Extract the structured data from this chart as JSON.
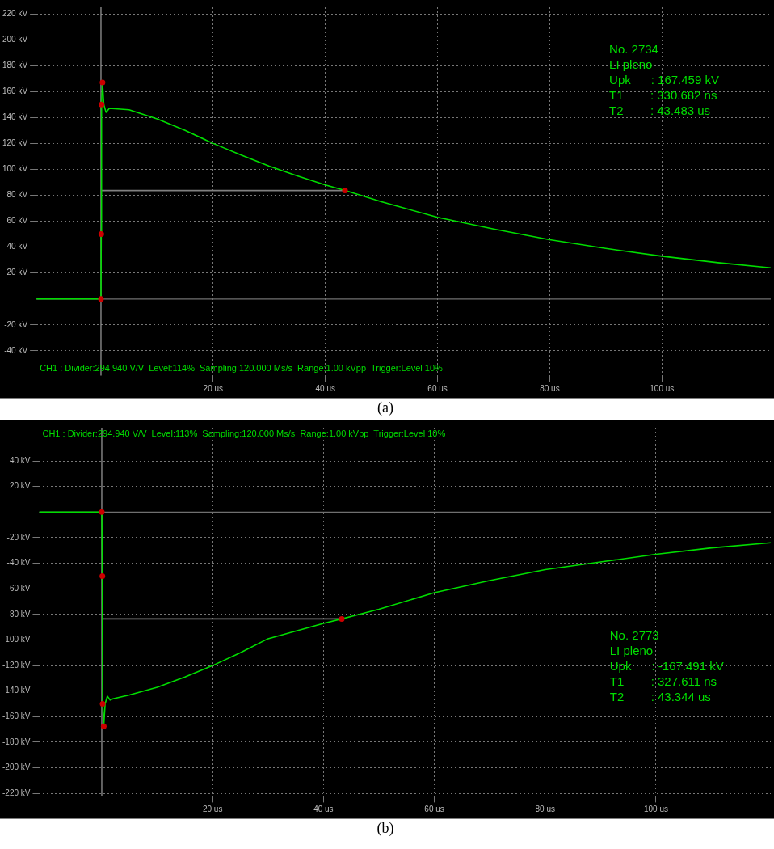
{
  "chart_data": [
    {
      "type": "line",
      "title": "(a)",
      "xlim": [
        -11.5,
        119.4
      ],
      "ylim": [
        -59,
        225
      ],
      "xticks": [
        {
          "value": 20,
          "label": "20 us"
        },
        {
          "value": 40,
          "label": "40 us"
        },
        {
          "value": 60,
          "label": "60 us"
        },
        {
          "value": 80,
          "label": "80 us"
        },
        {
          "value": 100,
          "label": "100 us"
        }
      ],
      "yticks": [
        {
          "value": -40,
          "label": "-40 kV"
        },
        {
          "value": -20,
          "label": "-20 kV"
        },
        {
          "value": 20,
          "label": "20 kV"
        },
        {
          "value": 40,
          "label": "40 kV"
        },
        {
          "value": 60,
          "label": "60 kV"
        },
        {
          "value": 80,
          "label": "80 kV"
        },
        {
          "value": 100,
          "label": "100 kV"
        },
        {
          "value": 120,
          "label": "120 kV"
        },
        {
          "value": 140,
          "label": "140 kV"
        },
        {
          "value": 160,
          "label": "160 kV"
        },
        {
          "value": 180,
          "label": "180 kV"
        },
        {
          "value": 200,
          "label": "200 kV"
        },
        {
          "value": 220,
          "label": "220 kV"
        }
      ],
      "grid": true,
      "ref_lines": [
        {
          "axis": "x",
          "value": 0,
          "color": "#a0a0a0"
        },
        {
          "axis": "y",
          "value": 0,
          "color": "#707070"
        }
      ],
      "series": [
        {
          "type": "line",
          "color": "#00dd00",
          "x": [
            -11.5,
            -6,
            0,
            0.05,
            0.1,
            0.27,
            0.5,
            0.9,
            1.5,
            5,
            10,
            15,
            20,
            25,
            30,
            35,
            40,
            43.5,
            50,
            60,
            70,
            80,
            90,
            100,
            110,
            119.4
          ],
          "values": [
            0,
            0,
            0,
            50,
            150,
            167,
            150,
            144,
            147,
            146,
            139,
            130,
            120,
            111,
            102.5,
            95,
            88,
            83.7,
            75,
            63,
            54,
            45.7,
            39,
            33,
            28,
            24
          ]
        },
        {
          "type": "line",
          "color": "#808080",
          "x": [
            0.15,
            43.5
          ],
          "values": [
            83.7,
            83.7
          ]
        },
        {
          "type": "scatter",
          "color": "#cc0000",
          "x": [
            0,
            0.05,
            0.1,
            0.27,
            43.5
          ],
          "values": [
            0,
            50,
            150,
            167,
            83.7
          ]
        }
      ],
      "annotations": [
        "CH1 : Divider:294.940 V/V  Level:114%  Sampling:120.000 Ms/s  Range:1.00 kVpp  Trigger:Level 10%",
        "No. 2734",
        "LI pleno",
        "Upk      : 167.459 kV",
        "T1        : 330.682 ns",
        "T2        : 43.483 us"
      ]
    },
    {
      "type": "line",
      "title": "(b)",
      "xlim": [
        -11.3,
        120.7
      ],
      "ylim": [
        -222,
        66
      ],
      "xticks": [
        {
          "value": 20,
          "label": "20 us"
        },
        {
          "value": 40,
          "label": "40 us"
        },
        {
          "value": 60,
          "label": "60 us"
        },
        {
          "value": 80,
          "label": "80 us"
        },
        {
          "value": 100,
          "label": "100 us"
        }
      ],
      "yticks": [
        {
          "value": -220,
          "label": "-220 kV"
        },
        {
          "value": -200,
          "label": "-200 kV"
        },
        {
          "value": -180,
          "label": "-180 kV"
        },
        {
          "value": -160,
          "label": "-160 kV"
        },
        {
          "value": -140,
          "label": "-140 kV"
        },
        {
          "value": -120,
          "label": "-120 kV"
        },
        {
          "value": -100,
          "label": "-100 kV"
        },
        {
          "value": -80,
          "label": "-80 kV"
        },
        {
          "value": -60,
          "label": "-60 kV"
        },
        {
          "value": -40,
          "label": "-40 kV"
        },
        {
          "value": -20,
          "label": "-20 kV"
        },
        {
          "value": 20,
          "label": "20 kV"
        },
        {
          "value": 40,
          "label": "40 kV"
        }
      ],
      "grid": true,
      "ref_lines": [
        {
          "axis": "x",
          "value": 0,
          "color": "#a0a0a0"
        },
        {
          "axis": "y",
          "value": 0,
          "color": "#707070"
        }
      ],
      "series": [
        {
          "type": "line",
          "color": "#00dd00",
          "x": [
            -11.3,
            -6,
            0,
            0.1,
            0.15,
            0.35,
            0.6,
            1.0,
            1.5,
            2,
            5,
            10,
            15,
            20,
            25,
            30,
            35,
            40,
            43.3,
            50,
            60,
            70,
            80,
            90,
            100,
            110,
            120.7
          ],
          "values": [
            0,
            0,
            0,
            -50,
            -150,
            -167.5,
            -150,
            -144,
            -147,
            -146,
            -143,
            -137,
            -129,
            -120,
            -110,
            -99,
            -93,
            -87,
            -83.5,
            -76,
            -63,
            -53.5,
            -45,
            -39,
            -33,
            -28,
            -24
          ]
        },
        {
          "type": "line",
          "color": "#808080",
          "x": [
            0.15,
            43.3
          ],
          "values": [
            -83.5,
            -83.5
          ]
        },
        {
          "type": "scatter",
          "color": "#cc0000",
          "x": [
            0,
            0.1,
            0.15,
            0.35,
            43.3
          ],
          "values": [
            0,
            -50,
            -150,
            -167.5,
            -83.5
          ]
        }
      ],
      "annotations": [
        "CH1 : Divider:294.940 V/V  Level:113%  Sampling:120.000 Ms/s  Range:1.00 kVpp  Trigger:Level 10%",
        "No. 2773",
        "LI pleno",
        "Upk      : -167.491 kV",
        "T1        : 327.611 ns",
        "T2        : 43.344 us"
      ]
    }
  ]
}
